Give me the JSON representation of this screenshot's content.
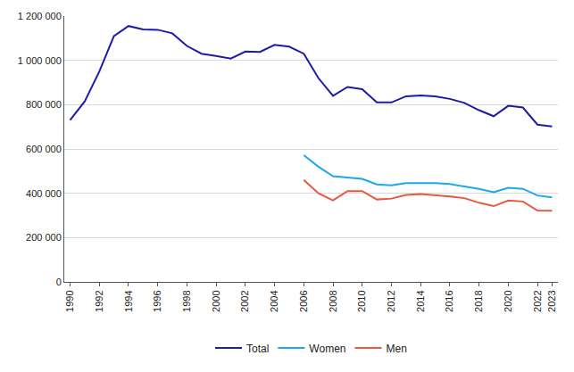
{
  "chart_data": {
    "type": "line",
    "x": [
      1990,
      1991,
      1992,
      1993,
      1994,
      1995,
      1996,
      1997,
      1998,
      1999,
      2000,
      2001,
      2002,
      2003,
      2004,
      2005,
      2006,
      2007,
      2008,
      2009,
      2010,
      2011,
      2012,
      2013,
      2014,
      2015,
      2016,
      2017,
      2018,
      2019,
      2020,
      2021,
      2022,
      2023
    ],
    "series": [
      {
        "name": "Total",
        "color": "#1c1ca8",
        "values": [
          730000,
          815000,
          950000,
          1110000,
          1155000,
          1140000,
          1138000,
          1122000,
          1065000,
          1030000,
          1020000,
          1008000,
          1040000,
          1038000,
          1070000,
          1062000,
          1030000,
          920000,
          840000,
          880000,
          870000,
          810000,
          810000,
          838000,
          842000,
          838000,
          826000,
          808000,
          775000,
          748000,
          795000,
          787000,
          710000,
          702000
        ]
      },
      {
        "name": "Women",
        "color": "#1ea7ea",
        "values": [
          null,
          null,
          null,
          null,
          null,
          null,
          null,
          null,
          null,
          null,
          null,
          null,
          null,
          null,
          null,
          null,
          572000,
          520000,
          477000,
          472000,
          465000,
          440000,
          436000,
          446000,
          446000,
          446000,
          442000,
          432000,
          420000,
          405000,
          425000,
          420000,
          390000,
          382000
        ]
      },
      {
        "name": "Men",
        "color": "#e9573f",
        "values": [
          null,
          null,
          null,
          null,
          null,
          null,
          null,
          null,
          null,
          null,
          null,
          null,
          null,
          null,
          null,
          null,
          460000,
          400000,
          368000,
          410000,
          410000,
          372000,
          376000,
          393000,
          397000,
          393000,
          386000,
          378000,
          357000,
          342000,
          367000,
          363000,
          322000,
          321000
        ]
      }
    ],
    "xlim": [
      1989.6,
      2023.4
    ],
    "xticks": [
      1990,
      1992,
      1994,
      1996,
      1998,
      2000,
      2002,
      2004,
      2006,
      2008,
      2010,
      2012,
      2014,
      2016,
      2018,
      2020,
      2022,
      2023
    ],
    "ylim": [
      0,
      1200000
    ],
    "yticks": [
      0,
      {
        "value": 200000,
        "label": "200 000"
      },
      {
        "value": 400000,
        "label": "400 000"
      },
      {
        "value": 600000,
        "label": "600 000"
      },
      {
        "value": 800000,
        "label": "800 000"
      },
      {
        "value": 1000000,
        "label": "1 000 000"
      },
      {
        "value": 1200000,
        "label": "1 200 000"
      }
    ],
    "grid": true,
    "legend": "bottom"
  }
}
